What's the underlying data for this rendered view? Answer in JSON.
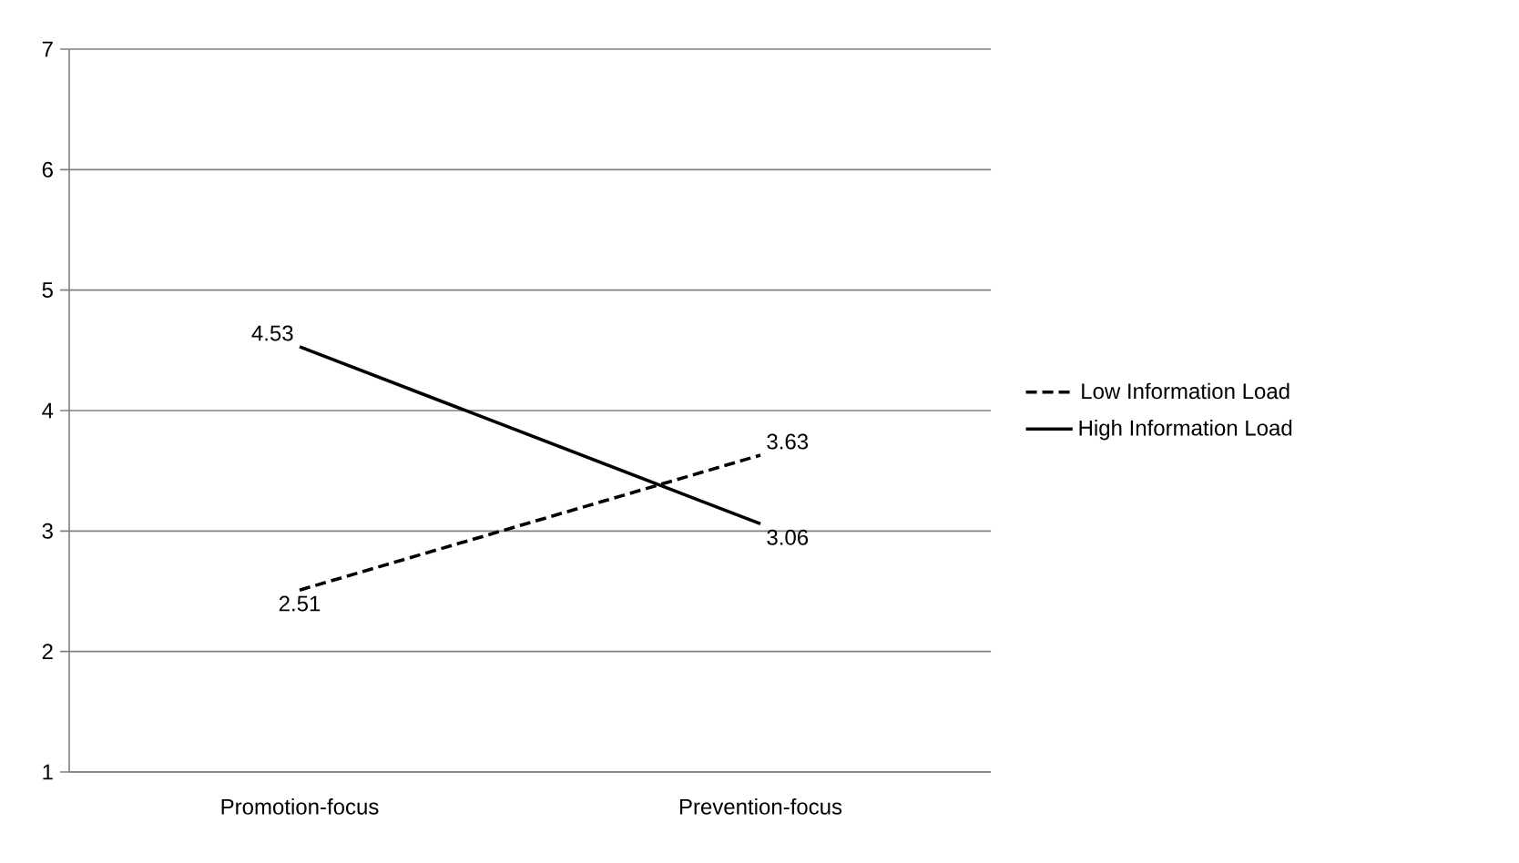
{
  "chart_data": {
    "type": "line",
    "categories": [
      "Promotion-focus",
      "Prevention-focus"
    ],
    "series": [
      {
        "name": "Low Information Load",
        "color": "#000000",
        "line_style": "dashed",
        "values": [
          2.51,
          3.63
        ]
      },
      {
        "name": "High Information Load",
        "color": "#000000",
        "line_style": "solid",
        "values": [
          4.53,
          3.06
        ]
      }
    ],
    "ylim": [
      1,
      7
    ],
    "yticks": [
      1,
      2,
      3,
      4,
      5,
      6,
      7
    ],
    "grid": "y",
    "legend": "right",
    "data_labels": true
  }
}
